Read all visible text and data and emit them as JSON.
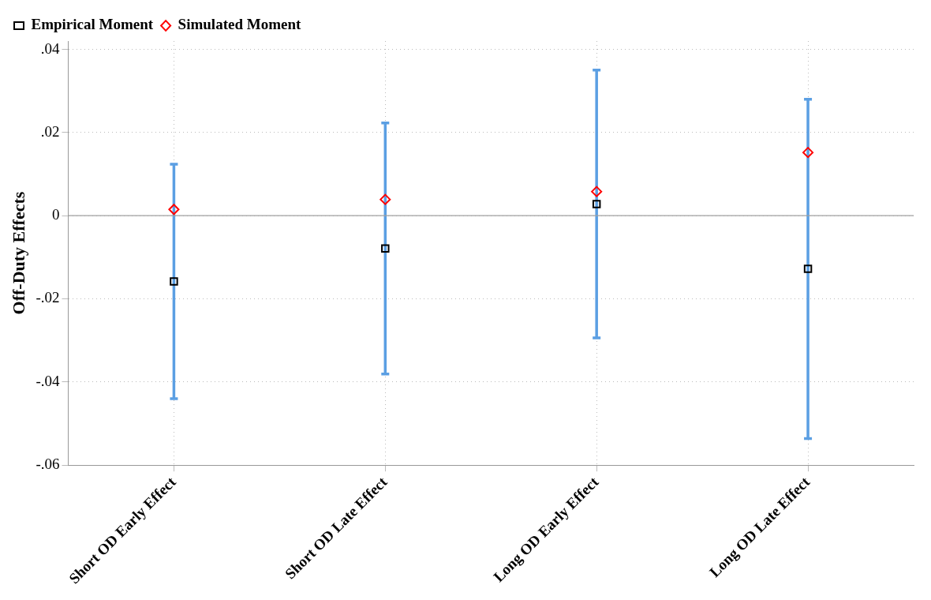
{
  "chart_data": {
    "type": "scatter",
    "ylabel": "Off-Duty Effects",
    "categories": [
      "Short OD Early Effect",
      "Short OD Late Effect",
      "Long OD Early Effect",
      "Long OD Late Effect"
    ],
    "series": [
      {
        "name": "Empirical Moment",
        "color": "#000000",
        "marker": "square",
        "values": [
          -0.0158,
          -0.0079,
          0.0028,
          -0.0128
        ],
        "errors": [
          0.0282,
          0.0302,
          0.0322,
          0.0408
        ]
      },
      {
        "name": "Simulated Moment",
        "color": "#ff0000",
        "marker": "diamond",
        "values": [
          0.0015,
          0.0039,
          0.0058,
          0.0152
        ]
      }
    ],
    "ylim": [
      -0.06,
      0.042
    ],
    "yticks": [
      {
        "value": -0.06,
        "label": "-.06"
      },
      {
        "value": -0.04,
        "label": "-.04"
      },
      {
        "value": -0.02,
        "label": "-.02"
      },
      0,
      {
        "value": 0.02,
        "label": ".02"
      },
      {
        "value": 0.04,
        "label": ".04"
      }
    ],
    "ref_lines": [
      {
        "axis": "y",
        "value": 0,
        "color": "#a0a0a0"
      }
    ],
    "grid": true,
    "legend": "top left"
  }
}
